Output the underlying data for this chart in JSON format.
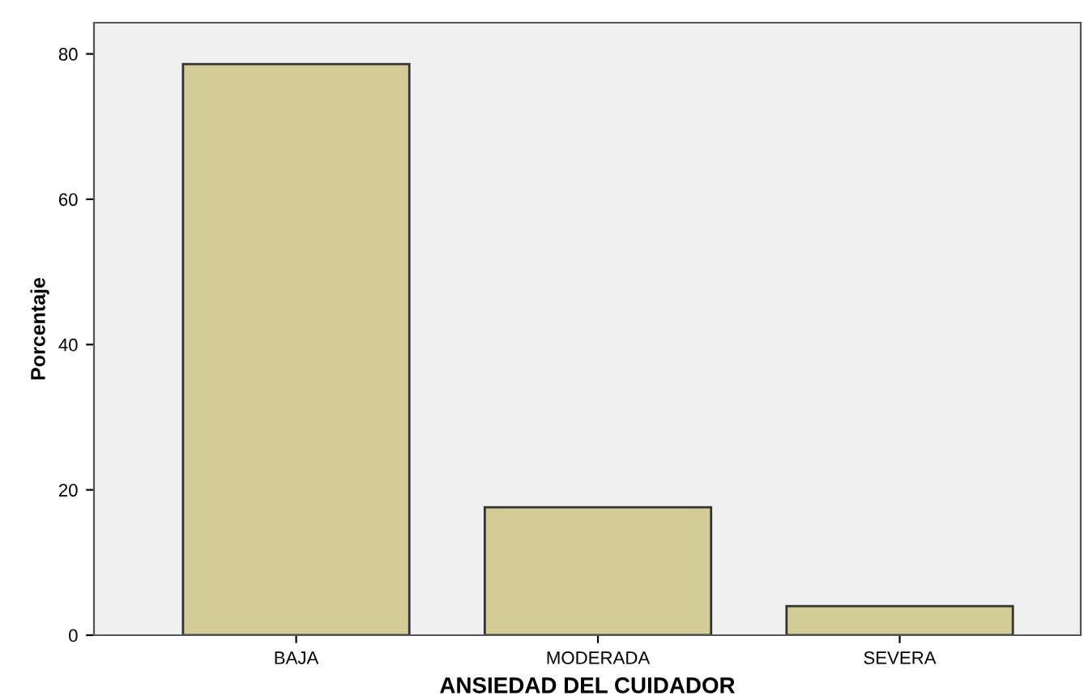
{
  "chart_data": {
    "type": "bar",
    "xlabel": "ANSIEDAD DEL CUIDADOR",
    "ylabel": "Porcentaje",
    "categories": [
      "BAJA",
      "MODERADA",
      "SEVERA"
    ],
    "values": [
      78.6,
      17.6,
      4.0
    ],
    "color": "#d2cd96",
    "ylim": [
      0,
      84.3
    ],
    "yticks": [
      0,
      20,
      40,
      60,
      80
    ],
    "grid": false
  }
}
